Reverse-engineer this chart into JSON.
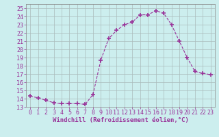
{
  "x": [
    0,
    1,
    2,
    3,
    4,
    5,
    6,
    7,
    8,
    9,
    10,
    11,
    12,
    13,
    14,
    15,
    16,
    17,
    18,
    19,
    20,
    21,
    22,
    23
  ],
  "y": [
    14.3,
    14.1,
    13.8,
    13.5,
    13.4,
    13.4,
    13.4,
    13.3,
    14.5,
    18.7,
    21.3,
    22.3,
    23.0,
    23.3,
    24.2,
    24.2,
    24.7,
    24.4,
    23.0,
    21.0,
    19.0,
    17.3,
    17.1,
    16.9
  ],
  "line_color": "#993399",
  "marker": "+",
  "marker_size": 4,
  "bg_color": "#cceeee",
  "grid_color": "#aabbbb",
  "xlabel": "Windchill (Refroidissement éolien,°C)",
  "xlim": [
    -0.5,
    23.5
  ],
  "ylim": [
    13,
    25.5
  ],
  "yticks": [
    13,
    14,
    15,
    16,
    17,
    18,
    19,
    20,
    21,
    22,
    23,
    24,
    25
  ],
  "xticks": [
    0,
    1,
    2,
    3,
    4,
    5,
    6,
    7,
    8,
    9,
    10,
    11,
    12,
    13,
    14,
    15,
    16,
    17,
    18,
    19,
    20,
    21,
    22,
    23
  ],
  "xlabel_fontsize": 6.5,
  "tick_fontsize": 6
}
